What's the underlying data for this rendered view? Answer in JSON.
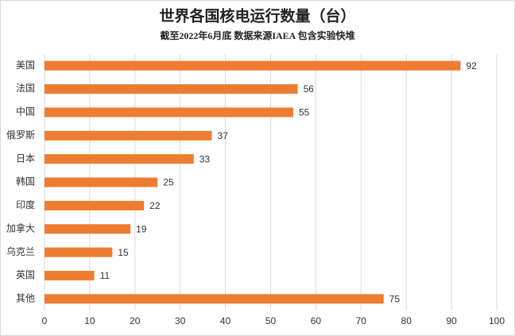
{
  "chart_data": {
    "type": "bar",
    "orientation": "horizontal",
    "title": "世界各国核电运行数量（台）",
    "subtitle": "截至2022年6月底  数据来源IAEA  包含实验快堆",
    "categories": [
      "美国",
      "法国",
      "中国",
      "俄罗斯",
      "日本",
      "韩国",
      "印度",
      "加拿大",
      "乌克兰",
      "英国",
      "其他"
    ],
    "values": [
      92,
      56,
      55,
      37,
      33,
      25,
      22,
      19,
      15,
      11,
      75
    ],
    "color": "#ed7d31",
    "xlim": [
      0,
      100
    ],
    "xticks": [
      0,
      10,
      20,
      30,
      40,
      50,
      60,
      70,
      80,
      90,
      100
    ],
    "grid": true
  }
}
